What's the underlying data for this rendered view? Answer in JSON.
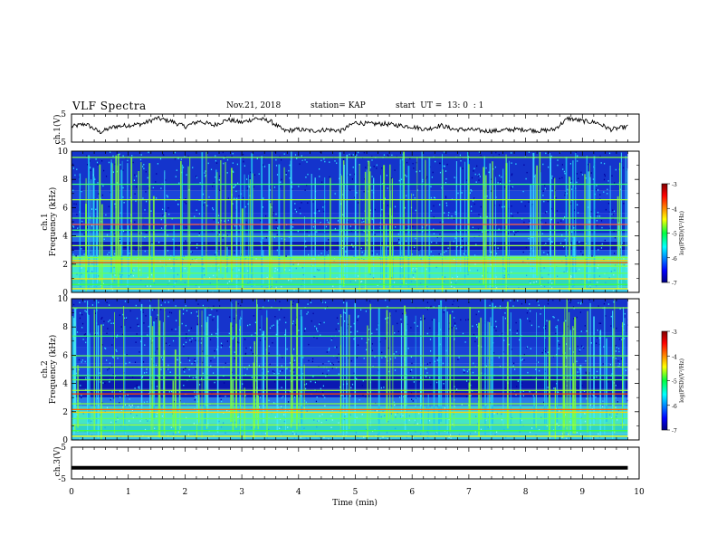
{
  "header": {
    "title": "VLF Spectra",
    "date": "Nov.21, 2018",
    "station": "station= KAP",
    "start": "start  UT =  13: 0  : 1"
  },
  "chart_data": [
    {
      "type": "line",
      "ylabel": "ch.1(V)",
      "xlim": [
        0,
        10
      ],
      "ylim": [
        -5,
        5
      ],
      "yticks": [
        "5",
        "-5"
      ],
      "x": [
        0.0,
        0.25,
        0.5,
        0.75,
        1.0,
        1.25,
        1.5,
        1.75,
        2.0,
        2.25,
        2.5,
        2.75,
        3.0,
        3.25,
        3.5,
        3.75,
        4.0,
        4.25,
        4.5,
        4.75,
        5.0,
        5.25,
        5.5,
        5.75,
        6.0,
        6.25,
        6.5,
        6.75,
        7.0,
        7.25,
        7.5,
        7.75,
        8.0,
        8.25,
        8.5,
        8.75,
        9.0,
        9.25,
        9.5,
        9.8
      ],
      "values": [
        0.5,
        1.5,
        -1.5,
        0.5,
        1.0,
        1.5,
        3.5,
        2.5,
        0.5,
        2.5,
        1.0,
        3.0,
        2.0,
        3.5,
        2.5,
        -1.0,
        -0.5,
        -1.0,
        -0.5,
        -1.0,
        2.0,
        1.5,
        1.5,
        1.0,
        0.5,
        -0.5,
        1.0,
        -0.5,
        -0.5,
        -1.0,
        -1.0,
        -0.5,
        -0.5,
        -1.0,
        -0.5,
        3.5,
        2.5,
        2.0,
        -0.5,
        0.5
      ]
    },
    {
      "type": "heatmap",
      "ylabel": "ch.1\nFrequency  (kHz)",
      "xlim": [
        0,
        9.8
      ],
      "ylim": [
        0,
        10
      ],
      "yticks": [
        "0",
        "2",
        "4",
        "6",
        "8",
        "10"
      ],
      "colorbar": {
        "label": "log(PSD)(V²/Hz)",
        "range": [
          -7,
          -3
        ],
        "ticks": [
          "-3",
          "-4",
          "-5",
          "-6",
          "-7"
        ]
      }
    },
    {
      "type": "heatmap",
      "ylabel": "ch.2\nFrequency  (kHz)",
      "xlim": [
        0,
        9.8
      ],
      "ylim": [
        0,
        10
      ],
      "yticks": [
        "0",
        "2",
        "4",
        "6",
        "8",
        "10"
      ],
      "colorbar": {
        "label": "log(PSD)(V²/Hz)",
        "range": [
          -7,
          -3
        ],
        "ticks": [
          "-3",
          "-4",
          "-5",
          "-6",
          "-7"
        ]
      }
    },
    {
      "type": "line",
      "ylabel": "ch.3(V)",
      "xlabel": "Time  (min)",
      "xlim": [
        0,
        10
      ],
      "ylim": [
        -5,
        5
      ],
      "yticks": [
        "5",
        "-5"
      ],
      "xticks": [
        "0",
        "1",
        "2",
        "3",
        "4",
        "5",
        "6",
        "7",
        "8",
        "9",
        "10"
      ],
      "x": [
        0,
        9.8
      ],
      "values": [
        -1.5,
        -1.5
      ]
    }
  ]
}
